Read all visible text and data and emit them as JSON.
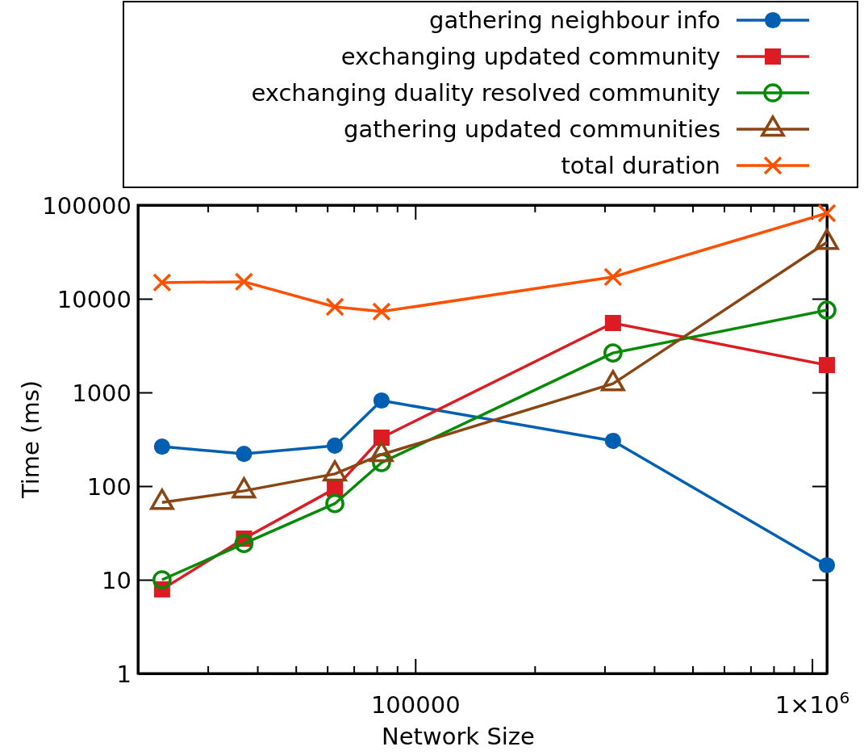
{
  "chart_data": {
    "type": "line",
    "xlabel": "Network Size",
    "ylabel": "Time (ms)",
    "log": "xy",
    "legend": "top",
    "marker": "circle",
    "line_style": "solid",
    "grid": false,
    "xlim": [
      20000,
      1090000
    ],
    "ylim": [
      1,
      100000
    ],
    "xticks": [
      {
        "value": 30000,
        "label": null
      },
      {
        "value": 40000,
        "label": null
      },
      {
        "value": 50000,
        "label": null
      },
      {
        "value": 60000,
        "label": null
      },
      {
        "value": 70000,
        "label": null
      },
      {
        "value": 80000,
        "label": null
      },
      {
        "value": 90000,
        "label": null
      },
      100000,
      {
        "value": 200000,
        "label": null
      },
      {
        "value": 300000,
        "label": null
      },
      {
        "value": 400000,
        "label": null
      },
      {
        "value": 500000,
        "label": null
      },
      {
        "value": 600000,
        "label": null
      },
      {
        "value": 700000,
        "label": null
      },
      {
        "value": 800000,
        "label": null
      },
      {
        "value": 900000,
        "label": null
      },
      {
        "value": 1000000,
        "label": "1×10$^{6}$"
      }
    ],
    "yticks": [
      1,
      10,
      100,
      1000,
      10000,
      100000
    ],
    "x": [
      23000,
      37000,
      62700,
      82200,
      315000,
      1090000
    ],
    "series": [
      {
        "name": "gathering neighbour info",
        "color": "#005fb0",
        "marker": "circle",
        "values": [
          264,
          221,
          270,
          820,
          304,
          14.3
        ]
      },
      {
        "name": "exchanging updated community",
        "color": "#dc1c22",
        "marker": "square",
        "values": [
          7.9,
          27.5,
          94,
          329,
          5510,
          1960
        ]
      },
      {
        "name": "exchanging duality resolved community",
        "color": "#058a05",
        "marker": "circle",
        "values": [
          10,
          24.4,
          65,
          178,
          2640,
          7570
        ]
      },
      {
        "name": "gathering updated communities",
        "color": "#8b4513",
        "marker": "triangle",
        "values": [
          67,
          89,
          135,
          217,
          1240,
          40100
        ]
      },
      {
        "name": "total duration",
        "color": "#ff5000",
        "marker": "cross",
        "values": [
          14900,
          15200,
          8200,
          7300,
          17100,
          82000
        ]
      }
    ]
  }
}
